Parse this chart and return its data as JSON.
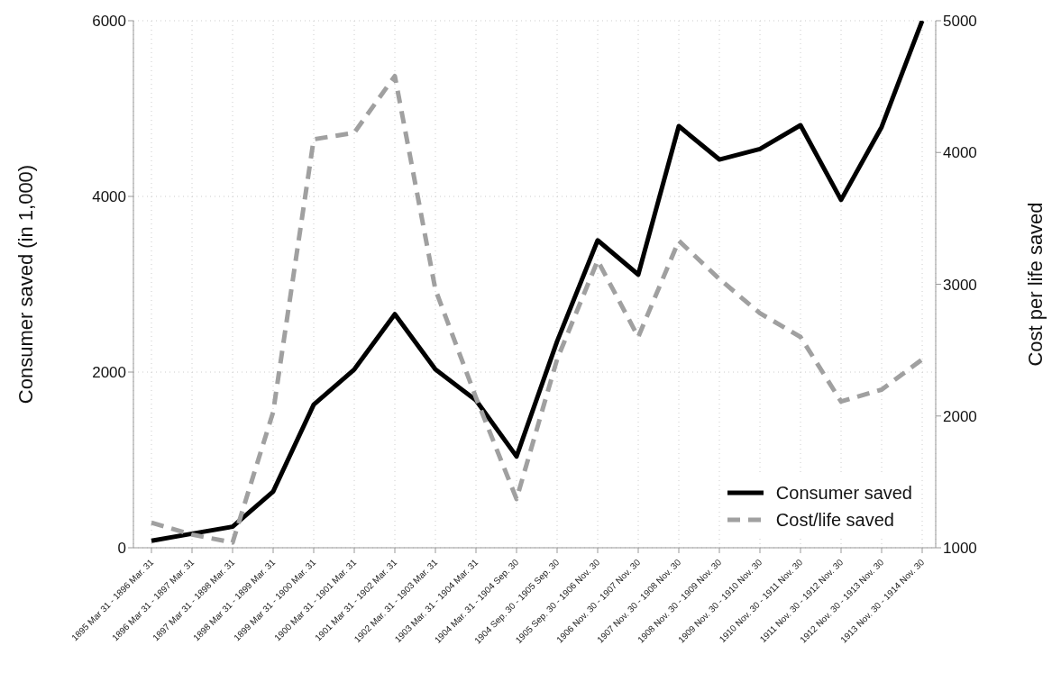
{
  "chart_data": {
    "type": "line",
    "categories": [
      "1895 Mar 31 - 1896 Mar. 31",
      "1896 Mar 31 - 1897 Mar. 31",
      "1897 Mar 31 - 1898 Mar. 31",
      "1898 Mar 31 - 1899 Mar. 31",
      "1899 Mar 31 - 1900 Mar. 31",
      "1900 Mar 31 - 1901 Mar. 31",
      "1901 Mar 31 - 1902 Mar. 31",
      "1902 Mar. 31 - 1903 Mar. 31",
      "1903 Mar. 31 - 1904 Mar. 31",
      "1904 Mar. 31 - 1904 Sep. 30",
      "1904 Sep. 30 - 1905 Sep. 30",
      "1905 Sep. 30 - 1906 Nov. 30",
      "1906 Nov. 30 - 1907 Nov. 30",
      "1907 Nov. 30 - 1908 Nov. 30",
      "1908 Nov. 30 - 1909 Nov. 30",
      "1909 Nov. 30 - 1910 Nov. 30",
      "1910 Nov. 30 - 1911 Nov. 30",
      "1911 Nov. 30 - 1912 Nov. 30",
      "1912 Nov. 30 - 1913 Nov. 30",
      "1913 Nov. 30 - 1914 Nov. 30"
    ],
    "series": [
      {
        "name": "Consumer saved",
        "color": "#000000",
        "line_style": "solid",
        "values": [
          80,
          160,
          240,
          640,
          1630,
          2030,
          2660,
          2030,
          1680,
          1040,
          2350,
          3500,
          3110,
          4800,
          4420,
          4540,
          4810,
          3960,
          4790,
          6000
        ]
      },
      {
        "name": "Cost/life saved",
        "color": "#a0a0a0",
        "line_style": "dashed",
        "axis": "y2",
        "values": [
          1190,
          1100,
          1040,
          2030,
          4100,
          4150,
          4580,
          2960,
          2140,
          1370,
          2430,
          3180,
          2600,
          3330,
          3040,
          2780,
          2600,
          2110,
          2200,
          2430
        ]
      }
    ],
    "ylabel": "Consumer saved (in 1,000)",
    "y2label": "Cost per life saved",
    "ylim": [
      0,
      6000
    ],
    "yticks": [
      0,
      2000,
      4000,
      6000
    ],
    "y2lim": [
      1000,
      5000
    ],
    "y2ticks": [
      1000,
      2000,
      3000,
      4000,
      5000
    ],
    "grid": true,
    "legend": "bottom right",
    "marker": "none"
  }
}
